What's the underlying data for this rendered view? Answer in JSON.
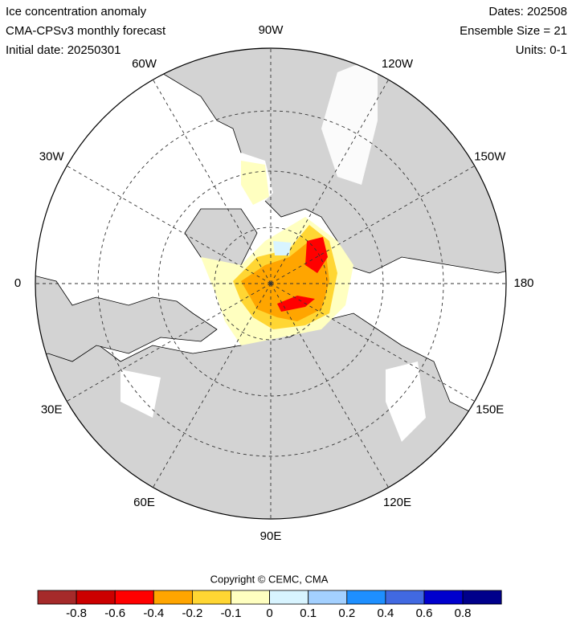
{
  "header": {
    "title": "Ice concentration anomaly",
    "subtitle": "CMA-CPSv3 monthly forecast",
    "initial_date": "Initial date: 20250301",
    "dates": "Dates: 202508",
    "ensemble": "Ensemble Size = 21",
    "units": "Units: 0-1"
  },
  "map": {
    "longitude_labels": [
      "90W",
      "120W",
      "150W",
      "180",
      "150E",
      "120E",
      "90E",
      "60E",
      "30E",
      "0",
      "30W",
      "60W"
    ]
  },
  "footer": {
    "copyright": "Copyright © CEMC, CMA"
  },
  "colorbar": {
    "colors": [
      "#a52a2a",
      "#cc0000",
      "#ff0000",
      "#ffa500",
      "#ffd633",
      "#ffffc0",
      "#d8f4ff",
      "#a3d0ff",
      "#1e8fff",
      "#4169e1",
      "#0000cd",
      "#00008b"
    ],
    "labels": [
      "-0.8",
      "-0.6",
      "-0.4",
      "-0.2",
      "-0.1",
      "0",
      "0.1",
      "0.2",
      "0.4",
      "0.6",
      "0.8"
    ]
  }
}
